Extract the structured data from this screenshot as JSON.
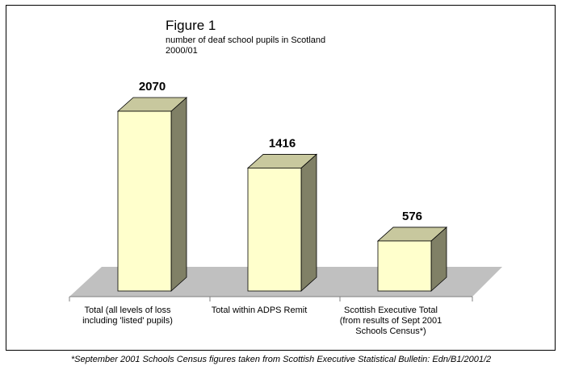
{
  "title": "Figure 1",
  "subtitle_lines": [
    "number of deaf school pupils in Scotland",
    "2000/01"
  ],
  "footnote": "*September 2001 Schools Census figures taken from Scottish Executive Statistical Bulletin: Edn/B1/2001/2",
  "colors": {
    "bar_front": "#ffffcc",
    "bar_top": "#c8c89e",
    "bar_side": "#808066",
    "floor": "#c0c0c0"
  },
  "chart_data": {
    "type": "bar",
    "categories": [
      [
        "Total (all levels of loss",
        "including 'listed' pupils)"
      ],
      [
        "Total within ADPS Remit"
      ],
      [
        "Scottish Executive Total",
        "(from results of Sept 2001",
        "Schools Census*)"
      ]
    ],
    "values": [
      2070,
      1416,
      576
    ],
    "data_labels": [
      "2070",
      "1416",
      "576"
    ],
    "ylim": [
      0,
      2070
    ],
    "grid": false,
    "legend": "none"
  }
}
